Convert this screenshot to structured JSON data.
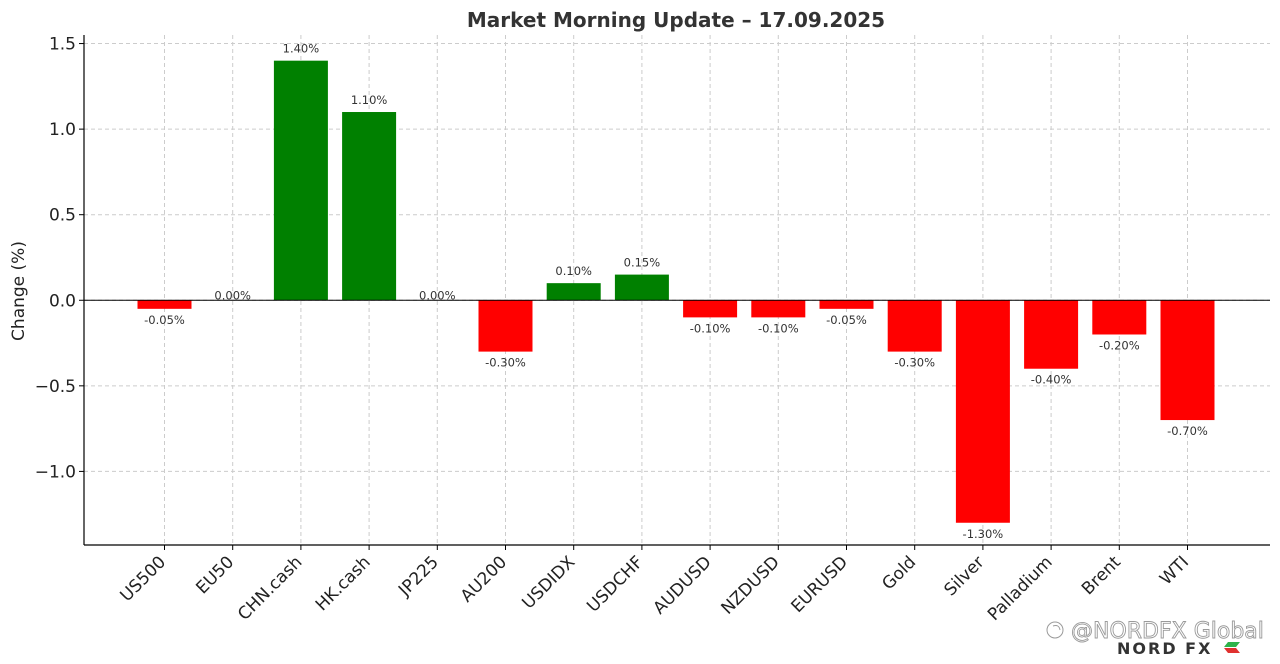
{
  "chart_data": {
    "type": "bar",
    "title": "Market Morning Update – 17.09.2025",
    "xlabel": "",
    "ylabel": "Change (%)",
    "ylim": [
      -1.43,
      1.55
    ],
    "yticks": [
      -1.0,
      -0.5,
      0.0,
      0.5,
      1.0,
      1.5
    ],
    "ytick_labels": [
      "−1.0",
      "−0.5",
      "0.0",
      "0.5",
      "1.0",
      "1.5"
    ],
    "grid": true,
    "categories": [
      "US500",
      "EU50",
      "CHN.cash",
      "HK.cash",
      "JP225",
      "AU200",
      "USDIDX",
      "USDCHF",
      "AUDUSD",
      "NZDUSD",
      "EURUSD",
      "Gold",
      "Silver",
      "Palladium",
      "Brent",
      "WTI"
    ],
    "values": [
      -0.05,
      0.0,
      1.4,
      1.1,
      0.0,
      -0.3,
      0.1,
      0.15,
      -0.1,
      -0.1,
      -0.05,
      -0.3,
      -1.3,
      -0.4,
      -0.2,
      -0.7
    ],
    "data_labels": [
      "-0.05%",
      "0.00%",
      "1.40%",
      "1.10%",
      "0.00%",
      "-0.30%",
      "0.10%",
      "0.15%",
      "-0.10%",
      "-0.10%",
      "-0.05%",
      "-0.30%",
      "-1.30%",
      "-0.40%",
      "-0.20%",
      "-0.70%"
    ],
    "colors": {
      "positive": "#008000",
      "negative": "#ff0000"
    }
  },
  "watermark": {
    "text": "@NORDFX Global",
    "brand": "NORD FX"
  }
}
